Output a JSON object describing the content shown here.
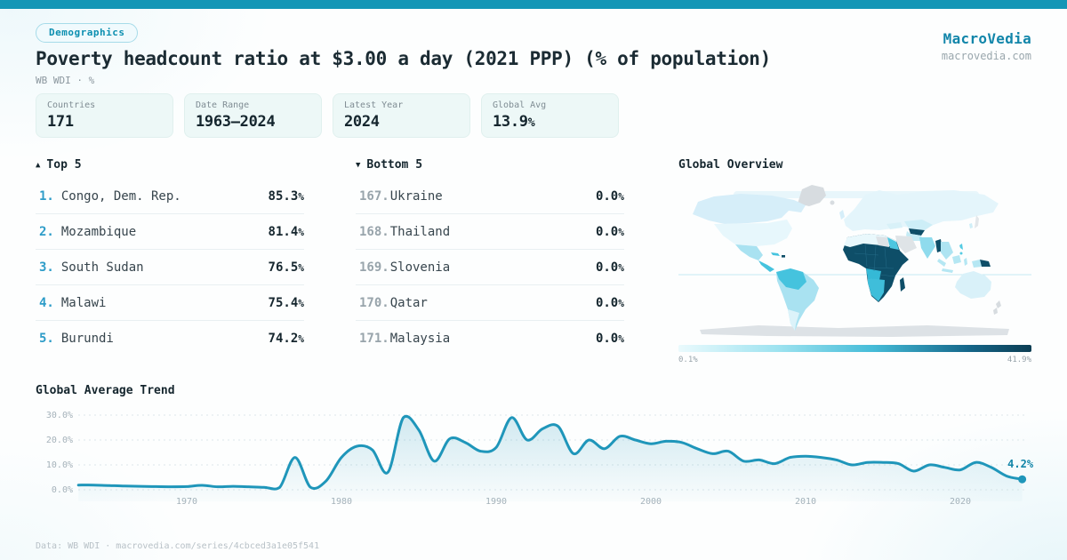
{
  "header": {
    "badge": "Demographics",
    "title": "Poverty headcount ratio at $3.00 a day (2021 PPP) (% of population)",
    "subtitle": "WB WDI · %",
    "brand": {
      "name": "MacroVedia",
      "domain": "macrovedia.com"
    }
  },
  "stats": [
    {
      "label": "Countries",
      "value": "171"
    },
    {
      "label": "Date Range",
      "value": "1963—2024"
    },
    {
      "label": "Latest Year",
      "value": "2024"
    },
    {
      "label": "Global Avg",
      "value": "13.9%"
    }
  ],
  "top5": {
    "arrow": "▲",
    "heading": "Top 5",
    "rows": [
      {
        "rank": "1.",
        "name": "Congo, Dem. Rep.",
        "value": "85.3%"
      },
      {
        "rank": "2.",
        "name": "Mozambique",
        "value": "81.4%"
      },
      {
        "rank": "3.",
        "name": "South Sudan",
        "value": "76.5%"
      },
      {
        "rank": "4.",
        "name": "Malawi",
        "value": "75.4%"
      },
      {
        "rank": "5.",
        "name": "Burundi",
        "value": "74.2%"
      }
    ]
  },
  "bottom5": {
    "arrow": "▼",
    "heading": "Bottom 5",
    "rows": [
      {
        "rank": "167.",
        "name": "Ukraine",
        "value": "0.0%"
      },
      {
        "rank": "168.",
        "name": "Thailand",
        "value": "0.0%"
      },
      {
        "rank": "169.",
        "name": "Slovenia",
        "value": "0.0%"
      },
      {
        "rank": "170.",
        "name": "Qatar",
        "value": "0.0%"
      },
      {
        "rank": "171.",
        "name": "Malaysia",
        "value": "0.0%"
      }
    ]
  },
  "map": {
    "heading": "Global Overview",
    "scale_min": "0.1%",
    "scale_max": "41.9%"
  },
  "trend": {
    "heading": "Global Average Trend"
  },
  "footer": {
    "text": "Data: WB WDI · macrovedia.com/series/4cbced3a1e05f541"
  },
  "colors": {
    "accent": "#1496b6",
    "brand": "#1286aa",
    "rank_accent": "#2d9cc8",
    "line": "#1f96ba",
    "map_dark": "#0e4e68",
    "map_medium": "#3fbeda",
    "map_light": "#a9e2f1",
    "map_palest": "#e7f7fc",
    "map_nodata": "#d9dee2"
  },
  "chart_data": [
    {
      "type": "line",
      "title": "Global Average Trend",
      "ylabel": "%",
      "years_from": 1963,
      "years_to": 2024,
      "values": [
        1.9,
        1.9,
        1.7,
        1.5,
        1.4,
        1.3,
        1.2,
        1.3,
        1.8,
        1.2,
        1.4,
        1.2,
        1.0,
        0.9,
        13.0,
        1.0,
        3.5,
        13.0,
        17.5,
        16.0,
        7.0,
        29.0,
        24.0,
        11.5,
        20.5,
        19.0,
        15.5,
        17.0,
        29.0,
        20.0,
        24.5,
        25.5,
        14.5,
        20.0,
        16.5,
        21.5,
        20.0,
        18.5,
        19.5,
        19.0,
        16.5,
        14.5,
        15.5,
        11.5,
        12.0,
        10.5,
        13.0,
        13.5,
        13.0,
        12.0,
        10.0,
        11.0,
        11.0,
        10.5,
        7.5,
        10.0,
        9.0,
        8.0,
        11.0,
        9.0,
        5.5,
        4.2
      ],
      "ylim": [
        0,
        32
      ],
      "ytick_values": [
        0,
        10,
        20,
        30
      ],
      "yticks": [
        "0.0%",
        "10.0%",
        "20.0%",
        "30.0%"
      ],
      "xtick_values": [
        1970,
        1980,
        1990,
        2000,
        2010,
        2020
      ],
      "xticks": [
        "1970",
        "1980",
        "1990",
        "2000",
        "2010",
        "2020"
      ],
      "end_label": "4.2%",
      "grid": "dashed-horizontal",
      "legend": "none",
      "line_color": "#1f96ba"
    },
    {
      "type": "heatmap",
      "subtype": "world-choropleth",
      "title": "Global Overview",
      "scale": {
        "min_label": "0.1%",
        "max_label": "41.9%",
        "colors": [
          "#eafafd",
          "#9ee3f0",
          "#45bcd8",
          "#0c3d53"
        ]
      },
      "observed_bands": {
        "darkest_highest": "Sub-Saharan Africa, Madagascar, Myanmar, Papua New Guinea, Haiti, Central Asia (Turkmenistan/Uzbekistan area)",
        "medium": "Andean South America, Central America, Southern Africa, Egypt, India, Philippines",
        "lightest_lowest": "North America, Europe, Russia, China, Australia, Brazil, Southeast Asia",
        "no_data_gray": "Greenland, Antarctica, Libya, Saudi Arabia, Japan, New Zealand, Iceland"
      }
    }
  ]
}
